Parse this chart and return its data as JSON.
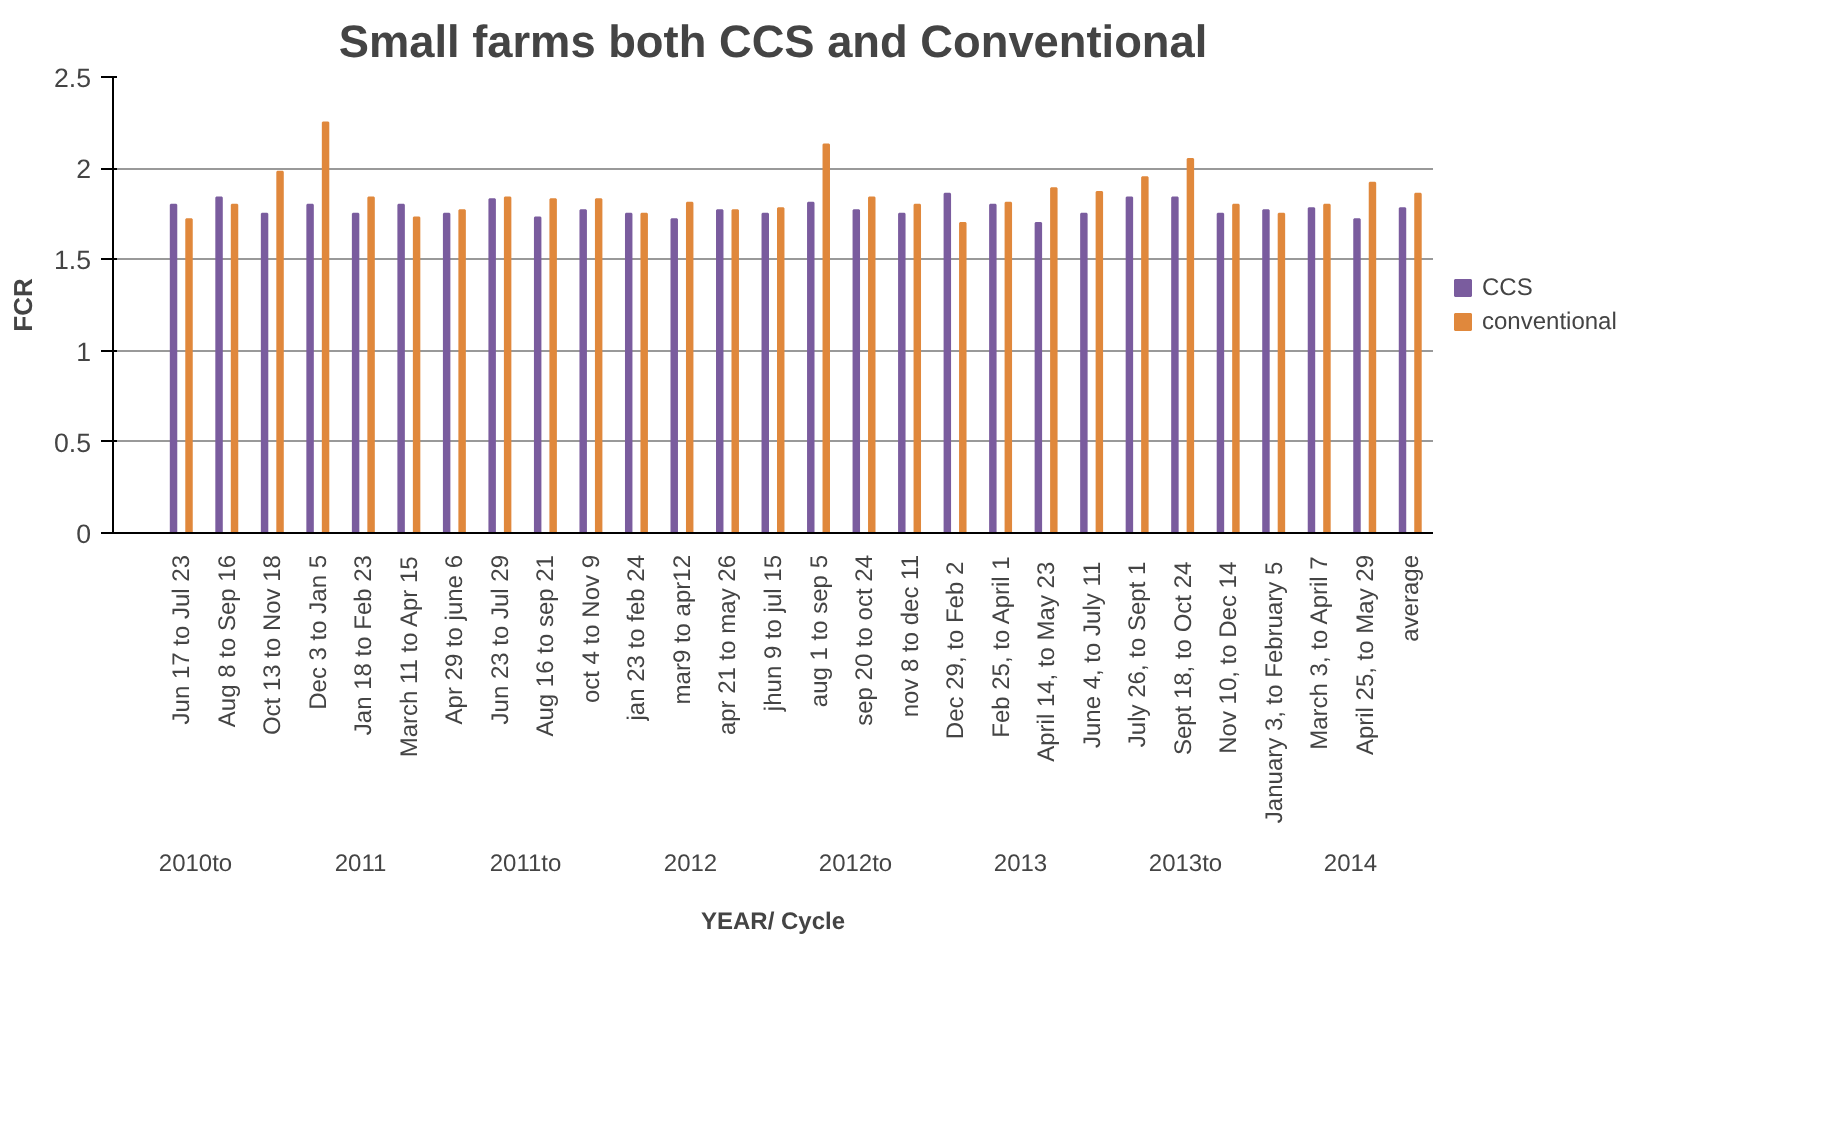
{
  "chart_data": {
    "type": "bar",
    "title": "Small farms both CCS and Conventional",
    "xlabel": "YEAR/ Cycle",
    "ylabel": "FCR",
    "categories": [
      null,
      "Jun 17 to Jul 23",
      "Aug 8 to Sep 16",
      "Oct 13 to Nov 18",
      "Dec 3 to Jan 5",
      "Jan 18 to Feb 23",
      "March 11 to Apr 15",
      "Apr 29 to june 6",
      "Jun 23 to Jul 29",
      "Aug 16 to sep 21",
      "oct 4 to Nov 9",
      "jan 23 to feb 24",
      "mar9 to apr12",
      "apr 21 to may 26",
      "jhun 9 to jul 15",
      "aug 1 to sep 5",
      "sep 20 to oct 24",
      "nov 8 to dec 11",
      "Dec 29,  to Feb 2",
      "Feb 25, to April 1",
      "April 14,  to May 23",
      "June 4,  to July 11",
      "July 26,  to Sept 1",
      "Sept 18,  to Oct 24",
      "Nov 10,  to Dec 14",
      "January 3,  to February 5",
      "March 3, to April 7",
      "April 25, to May 29",
      "average"
    ],
    "series": [
      {
        "name": "CCS",
        "color": "#7a5c9e",
        "values": [
          null,
          1.8,
          1.84,
          1.75,
          1.8,
          1.75,
          1.8,
          1.75,
          1.83,
          1.73,
          1.77,
          1.75,
          1.72,
          1.77,
          1.75,
          1.81,
          1.77,
          1.75,
          1.86,
          1.8,
          1.7,
          1.75,
          1.84,
          1.84,
          1.75,
          1.77,
          1.78,
          1.72,
          1.78
        ]
      },
      {
        "name": "conventional",
        "color": "#e0883c",
        "values": [
          null,
          1.72,
          1.8,
          1.98,
          2.25,
          1.84,
          1.73,
          1.77,
          1.84,
          1.83,
          1.83,
          1.75,
          1.81,
          1.77,
          1.78,
          2.13,
          1.84,
          1.8,
          1.7,
          1.81,
          1.89,
          1.87,
          1.95,
          2.05,
          1.8,
          1.75,
          1.8,
          1.92,
          1.86
        ]
      }
    ],
    "ylim": [
      0,
      2.5
    ],
    "yticks": [
      0,
      0.5,
      1,
      1.5,
      2,
      2.5
    ],
    "grid": "y",
    "legend": "right",
    "annotations": [
      "2010to",
      "2011",
      "2011to",
      "2012",
      "2012to",
      "2013",
      "2013to",
      "2014"
    ]
  }
}
